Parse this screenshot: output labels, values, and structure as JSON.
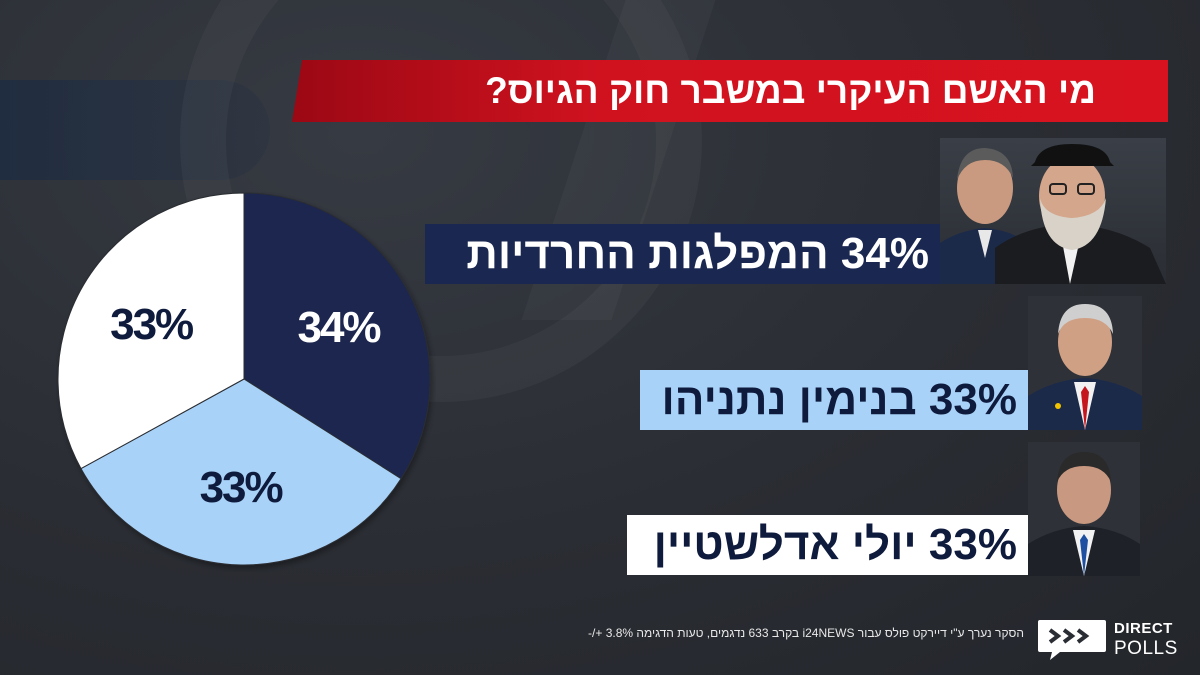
{
  "title": "מי האשם העיקרי במשבר חוק הגיוס?",
  "results": [
    {
      "label": "34% המפלגות החרדיות"
    },
    {
      "label": "33% בנימין נתניהו"
    },
    {
      "label": "33% יולי אדלשטיין"
    }
  ],
  "chart_data": {
    "type": "pie",
    "categories": [
      "המפלגות החרדיות",
      "בנימין נתניהו",
      "יולי אדלשטיין"
    ],
    "values": [
      34,
      33,
      33
    ],
    "slice_labels": [
      "34%",
      "33%",
      "33%"
    ],
    "colors": [
      "#1a2750",
      "#a9d2f8",
      "#ffffff"
    ],
    "label_colors": [
      "#ffffff",
      "#0e1b3c",
      "#0e1b3c"
    ],
    "title": "מי האשם העיקרי במשבר חוק הגיוס?"
  },
  "footer_note": "הסקר נערך ע\"י דיירקט פולס עבור i24NEWS בקרב 633 נדגמים, טעות הדגימה 3.8% +/-",
  "logo": {
    "line1": "DIRECT",
    "line2": "POLLS"
  },
  "colors": {
    "banner_red": "#d0121f",
    "navy": "#1a2750",
    "light_blue": "#a9d2f8",
    "background": "#2a2d33"
  }
}
